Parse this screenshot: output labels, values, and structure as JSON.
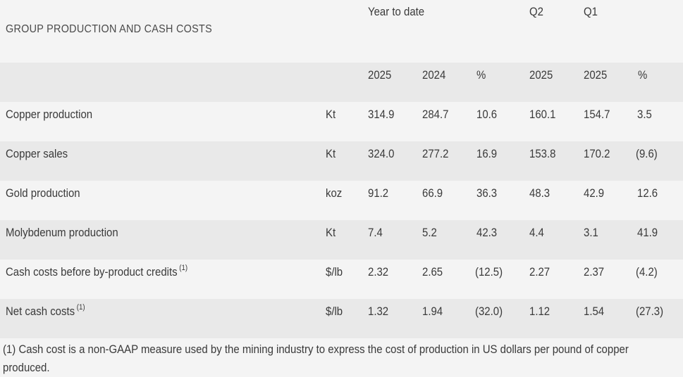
{
  "table": {
    "title": "GROUP PRODUCTION AND CASH COSTS",
    "group_headers": {
      "ytd": "Year to date",
      "q2": "Q2",
      "q1": "Q1"
    },
    "column_headers": [
      "2025",
      "2024",
      "%",
      "2025",
      "2025",
      "%"
    ],
    "rows": [
      {
        "label": "Copper production",
        "note": "",
        "unit": "Kt",
        "values": [
          "314.9",
          "284.7",
          "10.6",
          "160.1",
          "154.7",
          "3.5"
        ]
      },
      {
        "label": "Copper sales",
        "note": "",
        "unit": "Kt",
        "values": [
          "324.0",
          "277.2",
          "16.9",
          "153.8",
          "170.2",
          "(9.6)"
        ]
      },
      {
        "label": "Gold production",
        "note": "",
        "unit": "koz",
        "values": [
          "91.2",
          "66.9",
          "36.3",
          "48.3",
          "42.9",
          "12.6"
        ]
      },
      {
        "label": "Molybdenum production",
        "note": "",
        "unit": "Kt",
        "values": [
          "7.4",
          "5.2",
          "42.3",
          "4.4",
          "3.1",
          "41.9"
        ]
      },
      {
        "label": "Cash costs before by-product credits",
        "note": "(1)",
        "unit": "$/lb",
        "values": [
          "2.32",
          "2.65",
          "(12.5)",
          "2.27",
          "2.37",
          "(4.2)"
        ]
      },
      {
        "label": "Net cash costs",
        "note": "(1)",
        "unit": "$/lb",
        "values": [
          "1.32",
          "1.94",
          "(32.0)",
          "1.12",
          "1.54",
          "(27.3)"
        ]
      }
    ],
    "footnote": "(1) Cash cost is a non-GAAP measure used by the mining industry to express the cost of production in US dollars per pound of copper produced."
  }
}
